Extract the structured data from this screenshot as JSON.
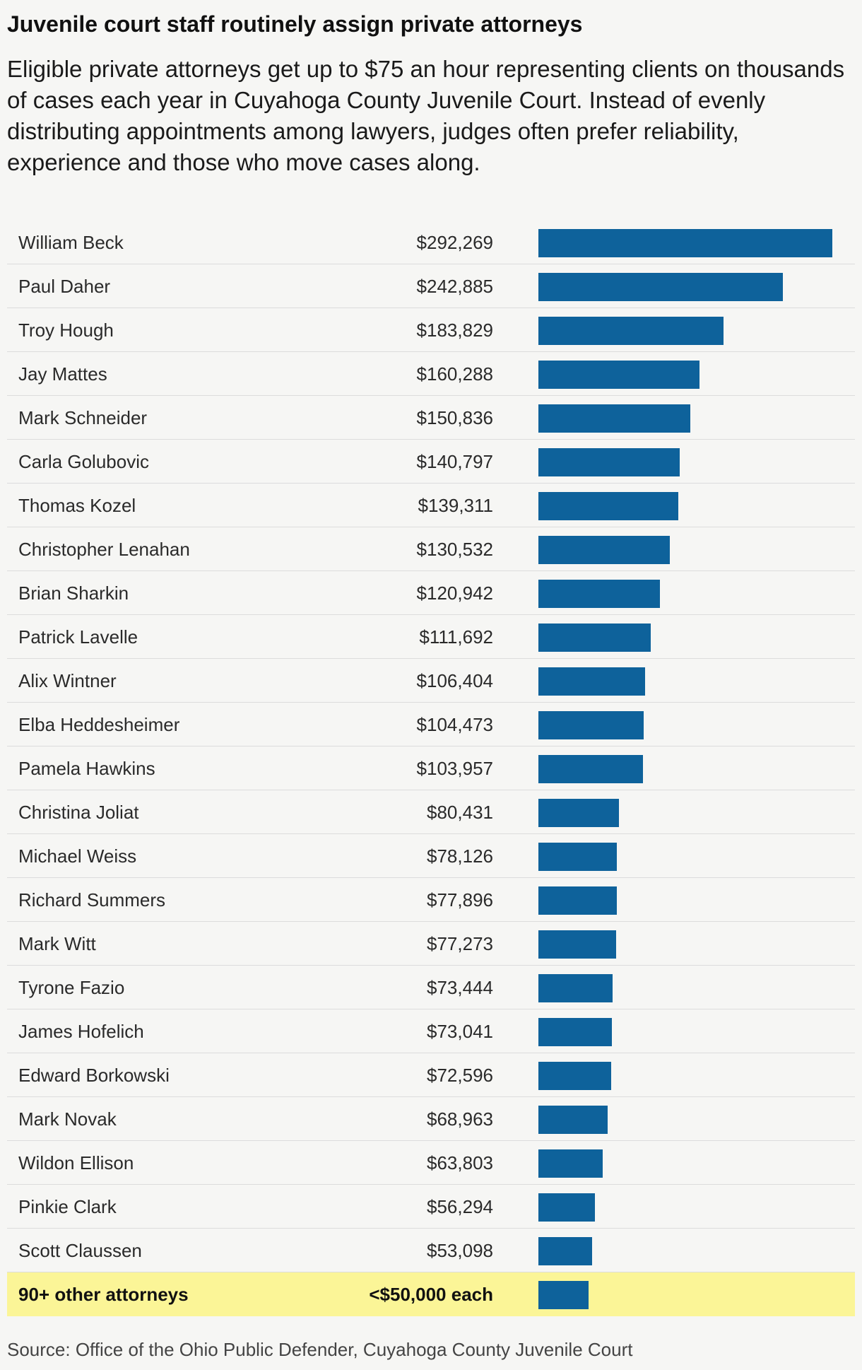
{
  "chart_data": {
    "type": "bar",
    "orientation": "horizontal",
    "title": "Juvenile court staff routinely assign private attorneys",
    "subtitle": "Eligible private attorneys get up to $75 an hour representing clients on thousands of cases each year in Cuyahoga County Juvenile Court. Instead of evenly distributing appointments among lawyers, judges often prefer reliability, experience and those who move cases along.",
    "source": "Source: Office of the Ohio Public Defender, Cuyahoga County Juvenile Court",
    "bar_color": "#0e629b",
    "highlight_color": "#fbf597",
    "xlim": [
      0,
      292269
    ],
    "rows": [
      {
        "name": "William Beck",
        "label": "$292,269",
        "value": 292269
      },
      {
        "name": "Paul Daher",
        "label": "$242,885",
        "value": 242885
      },
      {
        "name": "Troy Hough",
        "label": "$183,829",
        "value": 183829
      },
      {
        "name": "Jay Mattes",
        "label": "$160,288",
        "value": 160288
      },
      {
        "name": "Mark Schneider",
        "label": "$150,836",
        "value": 150836
      },
      {
        "name": "Carla Golubovic",
        "label": "$140,797",
        "value": 140797
      },
      {
        "name": "Thomas Kozel",
        "label": "$139,311",
        "value": 139311
      },
      {
        "name": "Christopher Lenahan",
        "label": "$130,532",
        "value": 130532
      },
      {
        "name": "Brian Sharkin",
        "label": "$120,942",
        "value": 120942
      },
      {
        "name": "Patrick Lavelle",
        "label": "$111,692",
        "value": 111692
      },
      {
        "name": "Alix Wintner",
        "label": "$106,404",
        "value": 106404
      },
      {
        "name": "Elba Heddesheimer",
        "label": "$104,473",
        "value": 104473
      },
      {
        "name": "Pamela Hawkins",
        "label": "$103,957",
        "value": 103957
      },
      {
        "name": "Christina Joliat",
        "label": "$80,431",
        "value": 80431
      },
      {
        "name": "Michael Weiss",
        "label": "$78,126",
        "value": 78126
      },
      {
        "name": "Richard Summers",
        "label": "$77,896",
        "value": 77896
      },
      {
        "name": "Mark Witt",
        "label": "$77,273",
        "value": 77273
      },
      {
        "name": "Tyrone Fazio",
        "label": "$73,444",
        "value": 73444
      },
      {
        "name": "James Hofelich",
        "label": "$73,041",
        "value": 73041
      },
      {
        "name": "Edward Borkowski",
        "label": "$72,596",
        "value": 72596
      },
      {
        "name": "Mark Novak",
        "label": "$68,963",
        "value": 68963
      },
      {
        "name": "Wildon Ellison",
        "label": "$63,803",
        "value": 63803
      },
      {
        "name": "Pinkie Clark",
        "label": "$56,294",
        "value": 56294
      },
      {
        "name": "Scott Claussen",
        "label": "$53,098",
        "value": 53098
      },
      {
        "name": "90+ other attorneys",
        "label": "<$50,000 each",
        "value": 50000,
        "highlight": true
      }
    ]
  }
}
